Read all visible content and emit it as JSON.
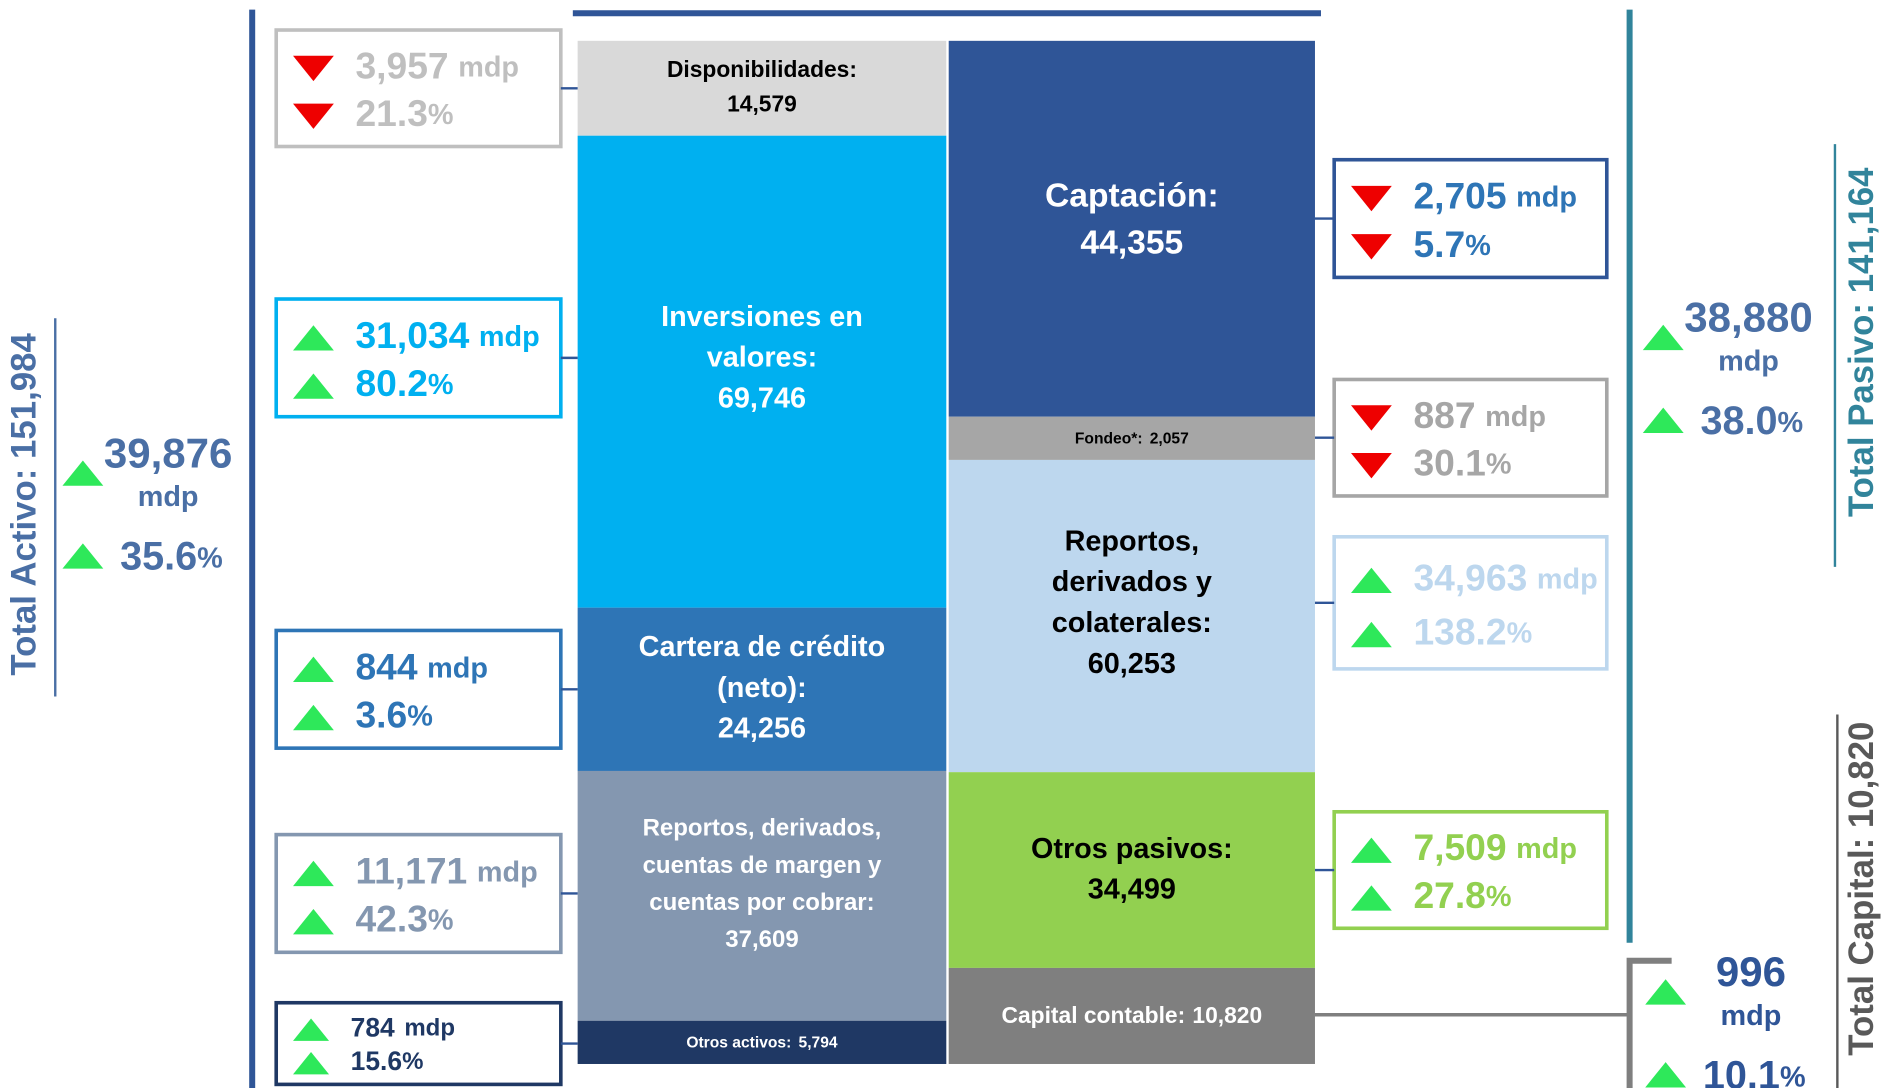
{
  "assets": {
    "total": {
      "label": "Total Activo: 151,984",
      "color": "#4a6fa5",
      "change": {
        "direction": "up",
        "amount": "39,876",
        "amount_unit": "mdp",
        "pct": "35.6",
        "pct_unit": "%"
      }
    },
    "blocks": [
      {
        "label_lines": [
          "Disponibilidades:"
        ],
        "value": "14,579",
        "color": "#d9d9d9",
        "text_color": "#000000",
        "change": {
          "direction": "down",
          "amount": "3,957",
          "amount_unit": "mdp",
          "pct": "21.3",
          "pct_unit": "%",
          "color": "#bfbfbf"
        }
      },
      {
        "label_lines": [
          "Inversiones en",
          "valores:"
        ],
        "value": "69,746",
        "color": "#00b0f0",
        "text_color": "#ffffff",
        "change": {
          "direction": "up",
          "amount": "31,034",
          "amount_unit": "mdp",
          "pct": "80.2",
          "pct_unit": "%",
          "color": "#00b0f0"
        }
      },
      {
        "label_lines": [
          "Cartera de crédito",
          "(neto):"
        ],
        "value": "24,256",
        "color": "#2e75b6",
        "text_color": "#ffffff",
        "change": {
          "direction": "up",
          "amount": "844",
          "amount_unit": "mdp",
          "pct": "3.6",
          "pct_unit": "%",
          "color": "#2e75b6"
        }
      },
      {
        "label_lines": [
          "Reportos, derivados,",
          "cuentas de margen y",
          "cuentas por cobrar:"
        ],
        "value": "37,609",
        "color": "#8497b0",
        "text_color": "#ffffff",
        "change": {
          "direction": "up",
          "amount": "11,171",
          "amount_unit": "mdp",
          "pct": "42.3",
          "pct_unit": "%",
          "color": "#8497b0"
        }
      },
      {
        "label_lines": [
          "Otros activos:"
        ],
        "value": "5,794",
        "color": "#1f3864",
        "text_color": "#ffffff",
        "change": {
          "direction": "up",
          "amount": "784",
          "amount_unit": "mdp",
          "pct": "15.6",
          "pct_unit": "%",
          "color": "#1f3864"
        }
      }
    ]
  },
  "liabilities": {
    "total": {
      "label": "Total Pasivo: 141,164",
      "color": "#31849b",
      "change": {
        "direction": "up",
        "amount": "38,880",
        "amount_unit": "mdp",
        "pct": "38.0",
        "pct_unit": "%",
        "color": "#4a6fa5"
      }
    },
    "blocks": [
      {
        "label_lines": [
          "Captación:"
        ],
        "value": "44,355",
        "color": "#2f5597",
        "text_color": "#ffffff",
        "change": {
          "direction": "down",
          "amount": "2,705",
          "amount_unit": "mdp",
          "pct": "5.7",
          "pct_unit": "%",
          "color": "#2e75b6",
          "border": "#2f5597"
        }
      },
      {
        "label_lines": [
          "Fondeo*:"
        ],
        "value": "2,057",
        "color": "#a6a6a6",
        "text_color": "#000000",
        "change": {
          "direction": "down",
          "amount": "887",
          "amount_unit": "mdp",
          "pct": "30.1",
          "pct_unit": "%",
          "color": "#a6a6a6"
        }
      },
      {
        "label_lines": [
          "Reportos,",
          "derivados y",
          "colaterales:"
        ],
        "value": "60,253",
        "color": "#bdd7ee",
        "text_color": "#000000",
        "change": {
          "direction": "up",
          "amount": "34,963",
          "amount_unit": "mdp",
          "pct": "138.2",
          "pct_unit": "%",
          "color": "#bdd7ee"
        }
      },
      {
        "label_lines": [
          "Otros pasivos:"
        ],
        "value": "34,499",
        "color": "#92d050",
        "text_color": "#000000",
        "change": {
          "direction": "up",
          "amount": "7,509",
          "amount_unit": "mdp",
          "pct": "27.8",
          "pct_unit": "%",
          "color": "#92d050"
        }
      },
      {
        "label_lines": [
          "Capital contable:"
        ],
        "value": "10,820",
        "color": "#7f7f7f",
        "text_color": "#ffffff"
      }
    ]
  },
  "capital": {
    "total": {
      "label": "Total Capital: 10,820",
      "color": "#595959",
      "change": {
        "direction": "up",
        "amount": "996",
        "amount_unit": "mdp",
        "pct": "10.1",
        "pct_unit": "%",
        "color": "#2f5597"
      }
    }
  }
}
